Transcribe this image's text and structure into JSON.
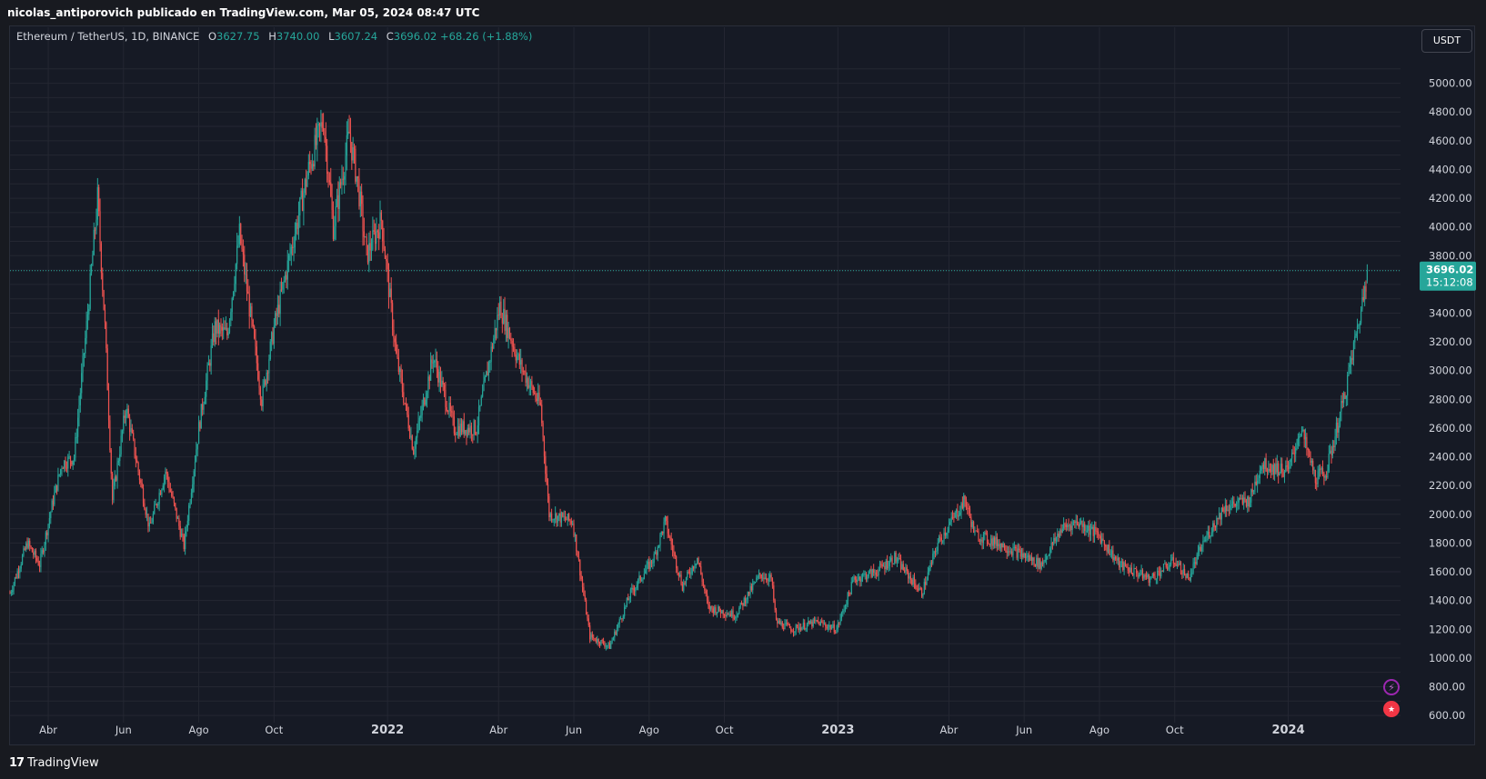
{
  "header": {
    "attribution": "nicolas_antiporovich publicado en TradingView.com, Mar 05, 2024 08:47 UTC"
  },
  "legend": {
    "symbol": "Ethereum / TetherUS, 1D, BINANCE",
    "o_label": "O",
    "o_value": "3627.75",
    "h_label": "H",
    "h_value": "3740.00",
    "l_label": "L",
    "l_value": "3607.24",
    "c_label": "C",
    "c_value": "3696.02",
    "change": "+68.26 (+1.88%)"
  },
  "currency_button": "USDT",
  "price_label": {
    "price": "3696.02",
    "countdown": "15:12:08"
  },
  "footer": {
    "brand": "TradingView",
    "logo": "17"
  },
  "icons": [
    "lightning-icon",
    "us-flag-icon",
    "tradingview-logo-icon"
  ],
  "colors": {
    "up": "#26a69a",
    "down": "#ef5350",
    "background": "#161a25",
    "grid": "#242732",
    "price_line": "#26a69a"
  },
  "chart_data": {
    "type": "candlestick",
    "symbol": "ETHUSDT",
    "interval": "1D",
    "ylim": [
      550,
      5200
    ],
    "y_ticks": [
      600,
      800,
      1000,
      1200,
      1400,
      1600,
      1800,
      2000,
      2200,
      2400,
      2600,
      2800,
      3000,
      3200,
      3400,
      3800,
      4000,
      4200,
      4400,
      4600,
      4800,
      5000
    ],
    "y_tick_labels": [
      "600.00",
      "800.00",
      "1000.00",
      "1200.00",
      "1400.00",
      "1600.00",
      "1800.00",
      "2000.00",
      "2200.00",
      "2400.00",
      "2600.00",
      "2800.00",
      "3000.00",
      "3200.00",
      "3400.00",
      "3800.00",
      "4000.00",
      "4200.00",
      "4400.00",
      "4600.00",
      "4800.00",
      "5000.00"
    ],
    "x_range": [
      "2021-03-01",
      "2024-04-01"
    ],
    "x_ticks": [
      {
        "date": "2021-04-01",
        "label": "Abr",
        "major": false
      },
      {
        "date": "2021-06-01",
        "label": "Jun",
        "major": false
      },
      {
        "date": "2021-08-01",
        "label": "Ago",
        "major": false
      },
      {
        "date": "2021-10-01",
        "label": "Oct",
        "major": false
      },
      {
        "date": "2022-01-01",
        "label": "2022",
        "major": true
      },
      {
        "date": "2022-04-01",
        "label": "Abr",
        "major": false
      },
      {
        "date": "2022-06-01",
        "label": "Jun",
        "major": false
      },
      {
        "date": "2022-08-01",
        "label": "Ago",
        "major": false
      },
      {
        "date": "2022-10-01",
        "label": "Oct",
        "major": false
      },
      {
        "date": "2023-01-01",
        "label": "2023",
        "major": true
      },
      {
        "date": "2023-04-01",
        "label": "Abr",
        "major": false
      },
      {
        "date": "2023-06-01",
        "label": "Jun",
        "major": false
      },
      {
        "date": "2023-08-01",
        "label": "Ago",
        "major": false
      },
      {
        "date": "2023-10-01",
        "label": "Oct",
        "major": false
      },
      {
        "date": "2024-01-01",
        "label": "2024",
        "major": true
      }
    ],
    "last_price": 3696.02,
    "approx_close_series": [
      [
        "2021-03-01",
        1450
      ],
      [
        "2021-03-15",
        1800
      ],
      [
        "2021-03-25",
        1650
      ],
      [
        "2021-04-05",
        2100
      ],
      [
        "2021-04-12",
        2350
      ],
      [
        "2021-04-22",
        2400
      ],
      [
        "2021-05-03",
        3400
      ],
      [
        "2021-05-11",
        4200
      ],
      [
        "2021-05-17",
        3300
      ],
      [
        "2021-05-23",
        2100
      ],
      [
        "2021-06-03",
        2750
      ],
      [
        "2021-06-22",
        1900
      ],
      [
        "2021-07-05",
        2300
      ],
      [
        "2021-07-20",
        1780
      ],
      [
        "2021-08-01",
        2600
      ],
      [
        "2021-08-14",
        3300
      ],
      [
        "2021-08-24",
        3250
      ],
      [
        "2021-09-03",
        3950
      ],
      [
        "2021-09-21",
        2800
      ],
      [
        "2021-10-01",
        3300
      ],
      [
        "2021-10-15",
        3850
      ],
      [
        "2021-10-29",
        4400
      ],
      [
        "2021-11-10",
        4750
      ],
      [
        "2021-11-18",
        4000
      ],
      [
        "2021-12-01",
        4650
      ],
      [
        "2021-12-08",
        4300
      ],
      [
        "2021-12-15",
        3800
      ],
      [
        "2021-12-27",
        4050
      ],
      [
        "2022-01-08",
        3100
      ],
      [
        "2022-01-22",
        2450
      ],
      [
        "2022-02-07",
        3100
      ],
      [
        "2022-02-24",
        2600
      ],
      [
        "2022-03-14",
        2600
      ],
      [
        "2022-04-02",
        3450
      ],
      [
        "2022-04-18",
        3050
      ],
      [
        "2022-05-05",
        2750
      ],
      [
        "2022-05-12",
        2000
      ],
      [
        "2022-05-31",
        1950
      ],
      [
        "2022-06-14",
        1150
      ],
      [
        "2022-06-30",
        1080
      ],
      [
        "2022-07-17",
        1450
      ],
      [
        "2022-08-05",
        1700
      ],
      [
        "2022-08-14",
        1950
      ],
      [
        "2022-08-28",
        1500
      ],
      [
        "2022-09-09",
        1700
      ],
      [
        "2022-09-18",
        1350
      ],
      [
        "2022-10-10",
        1300
      ],
      [
        "2022-10-30",
        1580
      ],
      [
        "2022-11-08",
        1550
      ],
      [
        "2022-11-12",
        1250
      ],
      [
        "2022-11-25",
        1200
      ],
      [
        "2022-12-15",
        1250
      ],
      [
        "2022-12-31",
        1200
      ],
      [
        "2023-01-14",
        1550
      ],
      [
        "2023-02-01",
        1600
      ],
      [
        "2023-02-16",
        1700
      ],
      [
        "2023-03-10",
        1450
      ],
      [
        "2023-03-23",
        1800
      ],
      [
        "2023-04-14",
        2100
      ],
      [
        "2023-04-22",
        1860
      ],
      [
        "2023-05-11",
        1800
      ],
      [
        "2023-06-15",
        1650
      ],
      [
        "2023-07-01",
        1900
      ],
      [
        "2023-07-14",
        1950
      ],
      [
        "2023-08-01",
        1850
      ],
      [
        "2023-08-17",
        1650
      ],
      [
        "2023-09-11",
        1550
      ],
      [
        "2023-10-01",
        1680
      ],
      [
        "2023-10-12",
        1550
      ],
      [
        "2023-10-24",
        1800
      ],
      [
        "2023-11-10",
        2050
      ],
      [
        "2023-12-01",
        2100
      ],
      [
        "2023-12-10",
        2350
      ],
      [
        "2024-01-01",
        2300
      ],
      [
        "2024-01-11",
        2600
      ],
      [
        "2024-01-23",
        2250
      ],
      [
        "2024-02-01",
        2300
      ],
      [
        "2024-02-15",
        2800
      ],
      [
        "2024-02-28",
        3380
      ],
      [
        "2024-03-04",
        3630
      ],
      [
        "2024-03-05",
        3696
      ]
    ]
  }
}
